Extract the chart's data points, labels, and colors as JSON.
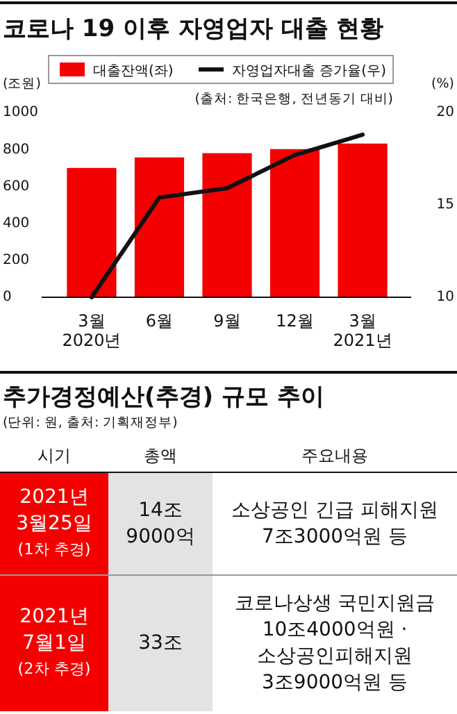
{
  "chart_data": [
    {
      "type": "bar",
      "title": "코로나 19 이후 자영업자 대출 현황",
      "categories": [
        "3월\n2020년",
        "6월",
        "9월",
        "12월",
        "3월\n2021년"
      ],
      "series": [
        {
          "name": "대출잔액(좌)",
          "type": "bar",
          "color": "#f40000",
          "values": [
            700,
            757,
            780,
            802,
            832
          ]
        },
        {
          "name": "자영업자대출 증가율(우)",
          "type": "line",
          "axis": "y2",
          "color": "#111111",
          "values": [
            10,
            15.4,
            15.9,
            17.7,
            18.8
          ]
        }
      ],
      "ylabel": "(조원)",
      "y2label": "(%)",
      "ylim": [
        0,
        1000
      ],
      "yticks": [
        0,
        200,
        400,
        600,
        800,
        1000
      ],
      "y2lim": [
        10,
        20
      ],
      "y2ticks": [
        10,
        15,
        20
      ],
      "annotations": [
        "(출처: 한국은행, 전년동기 대비)"
      ],
      "legend": "top",
      "grid": false
    },
    {
      "type": "other",
      "title": "추가경정예산(추경) 규모 추이",
      "subtitle": "(단위: 원, 출처: 기획재정부)",
      "annotations": [
        "시기",
        "총액",
        "주요내용",
        "2021년\n3월25일\n(1차 추경)",
        "14조\n9000억",
        "소상공인 긴급 피해지원\n7조3000억원 등",
        "2021년\n7월1일\n(2차 추경)",
        "33조",
        "코로나상생 국민지원금\n10조4000억원 ·\n소상공인피해지원\n3조9000억원 등"
      ]
    }
  ]
}
